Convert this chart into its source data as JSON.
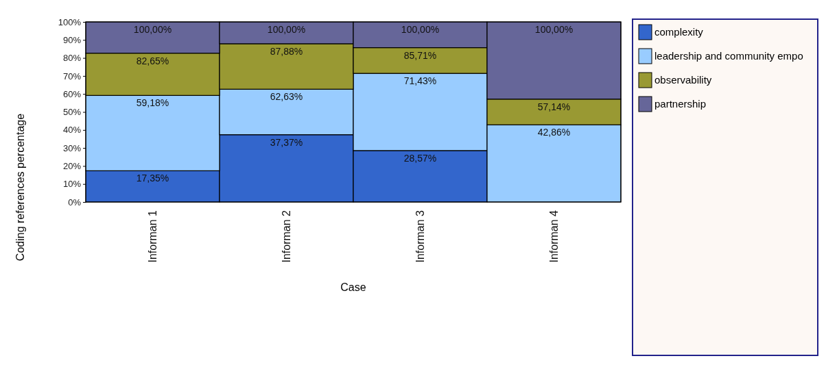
{
  "chart_data": {
    "type": "bar",
    "stacked": true,
    "xlabel": "Case",
    "ylabel": "Coding references percentage",
    "categories": [
      "Informan 1",
      "Informan 2",
      "Informan 3",
      "Informan 4"
    ],
    "ylim": [
      0,
      100
    ],
    "yticks": [
      {
        "value": 0,
        "label": "0%"
      },
      {
        "value": 10,
        "label": "10%"
      },
      {
        "value": 20,
        "label": "20%"
      },
      {
        "value": 30,
        "label": "30%"
      },
      {
        "value": 40,
        "label": "40%"
      },
      {
        "value": 50,
        "label": "50%"
      },
      {
        "value": 60,
        "label": "60%"
      },
      {
        "value": 70,
        "label": "70%"
      },
      {
        "value": 80,
        "label": "80%"
      },
      {
        "value": 90,
        "label": "90%"
      },
      {
        "value": 100,
        "label": "100%"
      }
    ],
    "legend": "right",
    "series": [
      {
        "name": "complexity",
        "color": "#3366cc",
        "values": [
          17.35,
          37.37,
          28.57,
          0
        ]
      },
      {
        "name": "leadership and community empo",
        "color": "#99ccff",
        "values": [
          41.83,
          25.26,
          42.86,
          42.86
        ]
      },
      {
        "name": "observability",
        "color": "#999933",
        "values": [
          23.47,
          25.25,
          14.28,
          14.28
        ]
      },
      {
        "name": "partnership",
        "color": "#666699",
        "values": [
          17.35,
          12.12,
          14.29,
          42.86
        ]
      }
    ],
    "annotations": [
      {
        "text": "17,35%",
        "x": "Informan 1",
        "y": 17.35
      },
      {
        "text": "37,37%",
        "x": "Informan 2",
        "y": 37.37
      },
      {
        "text": "28,57%",
        "x": "Informan 3",
        "y": 28.57
      },
      {
        "text": "59,18%",
        "x": "Informan 1",
        "y": 59.18
      },
      {
        "text": "62,63%",
        "x": "Informan 2",
        "y": 62.63
      },
      {
        "text": "71,43%",
        "x": "Informan 3",
        "y": 71.43
      },
      {
        "text": "42,86%",
        "x": "Informan 4",
        "y": 42.86
      },
      {
        "text": "82,65%",
        "x": "Informan 1",
        "y": 82.65
      },
      {
        "text": "87,88%",
        "x": "Informan 2",
        "y": 87.88
      },
      {
        "text": "85,71%",
        "x": "Informan 3",
        "y": 85.71
      },
      {
        "text": "57,14%",
        "x": "Informan 4",
        "y": 57.14
      },
      {
        "text": "100,00%",
        "x": "Informan 1",
        "y": 100
      },
      {
        "text": "100,00%",
        "x": "Informan 2",
        "y": 100
      },
      {
        "text": "100,00%",
        "x": "Informan 3",
        "y": 100
      },
      {
        "text": "100,00%",
        "x": "Informan 4",
        "y": 100
      }
    ]
  }
}
